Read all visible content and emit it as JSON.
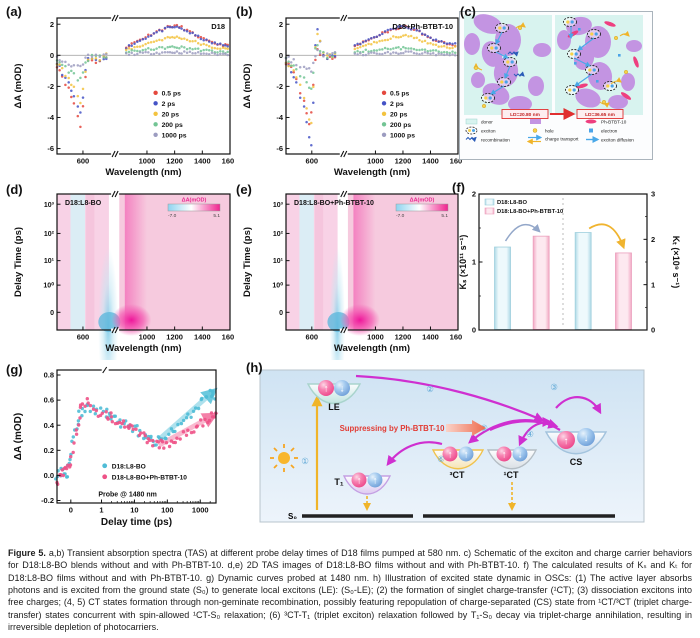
{
  "panels": {
    "a": {
      "tag": "(a)"
    },
    "b": {
      "tag": "(b)"
    },
    "c": {
      "tag": "(c)",
      "ld_before": "LD=20.80 nm",
      "ld_after": "LD=36.65 nm",
      "legend": [
        "donor",
        "exciton",
        "recombination",
        "hole",
        "charge transport",
        "Ph-BTBT-10",
        "electron",
        "exciton diffusion"
      ],
      "colors": {
        "donor": "#d8f3ef",
        "acceptor": "#c79ae4",
        "ph_btbt_10": "#ee3f7f"
      }
    },
    "d": {
      "tag": "(d)"
    },
    "e": {
      "tag": "(e)"
    },
    "f": {
      "tag": "(f)"
    },
    "g": {
      "tag": "(g)"
    },
    "h": {
      "tag": "(h)",
      "suppress": "Suppressing by Ph-BTBT-10",
      "states": {
        "LE": "LE",
        "T1": "T₁",
        "CT3": "³CT",
        "CT1": "¹CT",
        "CS": "CS",
        "S0": "S₀"
      },
      "steps": [
        "①",
        "②",
        "③",
        "④",
        "⑤",
        "⑥"
      ]
    }
  },
  "icons": {
    "spin_up": "↑",
    "spin_down": "↓"
  },
  "caption": {
    "lead": "Figure 5.",
    "body": "a,b) Transient absorption spectra (TAS) at different probe delay times of D18 films pumped at 580 nm. c) Schematic of the exciton and charge carrier behaviors for D18:L8-BO blends without and with Ph-BTBT-10. d,e) 2D TAS images of D18:L8-BO films without and with Ph-BTBT-10. f) The calculated results of Kₛ and Kₜ for D18:L8-BO films without and with Ph-BTBT-10. g) Dynamic curves probed at 1480 nm. h) Illustration of excited state dynamic in OSCs: (1) The active layer absorbs photons and is excited from the ground state (S₀) to generate local excitons (LE): (S₀-LE); (2) the formation of singlet charge-transfer (¹CT); (3) dissociation excitons into free charges; (4, 5) CT states formation through non-geminate recombination, possibly featuring repopulation of charge-separated (CS) state from ¹CT/³CT (triplet charge-transfer) states concurrent with spin-allowed ¹CT-S₀ relaxation; (6) ³CT-T₁ (triplet exciton) relaxation followed by T₁-S₀ decay via triplet-charge annihilation, resulting in irreversible depletion of photocarriers."
  },
  "chart_data": [
    {
      "id": "a",
      "type": "scatter",
      "title": "D18",
      "xlabel": "Wavelength (nm)",
      "ylabel": "ΔA (mOD)",
      "ylim": [
        -6.35,
        2.4
      ],
      "yticks": [
        2,
        0,
        -2,
        -4,
        -6
      ],
      "xticks": [
        600,
        1000,
        1200,
        1400,
        1600
      ],
      "x_break": [
        700,
        800
      ],
      "x": [
        500,
        520,
        545,
        565,
        580,
        590,
        600,
        610,
        620,
        635,
        650,
        665,
        680,
        700,
        850,
        950,
        1050,
        1150,
        1200,
        1250,
        1350,
        1450,
        1550,
        1600
      ],
      "series": [
        {
          "name": "0.5 ps",
          "color": "#e4483e",
          "y": [
            -0.6,
            -1.3,
            -2.2,
            -3.1,
            -3.9,
            -4.6,
            -3.2,
            -1.3,
            -0.4,
            -0.2,
            -0.45,
            -0.4,
            -0.2,
            0.0,
            0.55,
            1.0,
            1.45,
            1.82,
            1.9,
            1.8,
            1.3,
            0.85,
            0.65,
            0.6
          ]
        },
        {
          "name": "2 ps",
          "color": "#4553c6",
          "y": [
            -0.5,
            -1.1,
            -1.9,
            -2.7,
            -3.3,
            -3.8,
            -2.7,
            -1.1,
            -0.35,
            -0.2,
            -0.4,
            -0.35,
            -0.15,
            0.0,
            0.5,
            0.95,
            1.4,
            1.75,
            1.82,
            1.72,
            1.28,
            0.85,
            0.65,
            0.6
          ]
        },
        {
          "name": "20 ps",
          "color": "#f3c33f",
          "y": [
            -0.45,
            -0.95,
            -1.55,
            -2.15,
            -2.6,
            -2.9,
            -2.0,
            -0.9,
            -0.3,
            -0.15,
            -0.3,
            -0.25,
            -0.1,
            0.0,
            0.35,
            0.6,
            0.9,
            1.12,
            1.18,
            1.12,
            0.85,
            0.55,
            0.42,
            0.4
          ]
        },
        {
          "name": "200 ps",
          "color": "#72c494",
          "y": [
            -0.3,
            -0.6,
            -0.95,
            -1.25,
            -1.45,
            -1.55,
            -1.1,
            -0.5,
            -0.2,
            -0.1,
            -0.2,
            -0.15,
            -0.05,
            0.0,
            0.2,
            0.3,
            0.42,
            0.5,
            0.52,
            0.5,
            0.4,
            0.28,
            0.2,
            0.18
          ]
        },
        {
          "name": "1000 ps",
          "color": "#9c9cc0",
          "y": [
            -0.2,
            -0.35,
            -0.5,
            -0.65,
            -0.75,
            -0.85,
            -0.6,
            -0.3,
            -0.1,
            -0.05,
            -0.1,
            -0.08,
            0.0,
            0.02,
            0.08,
            0.12,
            0.16,
            0.19,
            0.2,
            0.19,
            0.15,
            0.1,
            0.08,
            0.08
          ]
        }
      ]
    },
    {
      "id": "b",
      "type": "scatter",
      "title": "D18+Ph-BTBT-10",
      "xlabel": "Wavelength (nm)",
      "ylabel": "ΔA (mOD)",
      "ylim": [
        -6.35,
        2.4
      ],
      "yticks": [
        2,
        0,
        -2,
        -4,
        -6
      ],
      "xticks": [
        600,
        1000,
        1200,
        1400,
        1600
      ],
      "x_break": [
        700,
        800
      ],
      "x": [
        500,
        520,
        540,
        555,
        570,
        580,
        590,
        598,
        606,
        614,
        622,
        632,
        645,
        660,
        680,
        700,
        850,
        950,
        1050,
        1150,
        1220,
        1300,
        1400,
        1500,
        1600
      ],
      "series": [
        {
          "name": "0.5 ps",
          "color": "#e4483e",
          "y": [
            -0.4,
            -0.9,
            -1.6,
            -2.3,
            -3.0,
            -3.6,
            -4.3,
            -3.7,
            -1.8,
            -0.2,
            0.3,
            0.1,
            -0.15,
            -0.25,
            -0.15,
            0.1,
            0.6,
            1.0,
            1.4,
            1.72,
            1.85,
            1.6,
            1.1,
            0.8,
            0.65
          ]
        },
        {
          "name": "2 ps",
          "color": "#4553c6",
          "y": [
            -0.4,
            -1.0,
            -1.8,
            -2.6,
            -3.4,
            -4.3,
            -5.2,
            -5.9,
            -3.0,
            0.8,
            1.6,
            0.9,
            0.1,
            -0.15,
            -0.05,
            0.15,
            0.6,
            1.0,
            1.42,
            1.75,
            1.83,
            1.62,
            1.1,
            0.8,
            0.68
          ]
        },
        {
          "name": "20 ps",
          "color": "#f3c33f",
          "y": [
            -0.35,
            -0.8,
            -1.4,
            -2.0,
            -2.7,
            -3.3,
            -4.0,
            -4.3,
            -2.2,
            0.6,
            1.3,
            0.8,
            0.1,
            -0.1,
            0.0,
            0.15,
            0.45,
            0.7,
            0.95,
            1.2,
            1.28,
            1.1,
            0.75,
            0.55,
            0.5
          ]
        },
        {
          "name": "200 ps",
          "color": "#72c494",
          "y": [
            -0.25,
            -0.5,
            -0.9,
            -1.3,
            -1.6,
            -1.9,
            -2.2,
            -2.3,
            -1.2,
            0.3,
            0.65,
            0.4,
            0.05,
            -0.05,
            0.0,
            0.1,
            0.2,
            0.3,
            0.38,
            0.45,
            0.48,
            0.42,
            0.3,
            0.22,
            0.2
          ]
        },
        {
          "name": "1000 ps",
          "color": "#9c9cc0",
          "y": [
            -0.15,
            -0.3,
            -0.5,
            -0.65,
            -0.8,
            -0.9,
            -1.0,
            -1.05,
            -0.55,
            0.1,
            0.3,
            0.2,
            0.0,
            0.0,
            0.02,
            0.05,
            0.08,
            0.1,
            0.13,
            0.16,
            0.18,
            0.15,
            0.1,
            0.08,
            0.08
          ]
        }
      ]
    },
    {
      "id": "d",
      "type": "heatmap",
      "title": "D18:L8-BO",
      "xlabel": "Wavelength (nm)",
      "ylabel": "Delay Time (ps)",
      "yticks": [
        "10³",
        "10²",
        "10¹",
        "10⁰",
        "0"
      ],
      "xticks": [
        600,
        1000,
        1200,
        1400,
        1600
      ],
      "colorbar": {
        "label": "ΔA(mOD)",
        "min": "-7.0",
        "max": "5.1"
      },
      "bands": {
        "gsb_nm": [
          552,
          608
        ],
        "exciton_nm": [
          655,
          785
        ],
        "pia_nm": [
          840,
          1000
        ],
        "hot_nm": [
          860,
          915
        ]
      }
    },
    {
      "id": "e",
      "type": "heatmap",
      "title": "D18:L8-BO+Ph-BTBT-10",
      "xlabel": "Wavelength (nm)",
      "ylabel": "Delay Time (ps)",
      "yticks": [
        "10³",
        "10²",
        "10¹",
        "10⁰",
        "0"
      ],
      "xticks": [
        600,
        1000,
        1200,
        1400,
        1600
      ],
      "colorbar": {
        "label": "ΔA(mOD)",
        "min": "-7.0",
        "max": "5.1"
      },
      "bands": {
        "gsb_nm": [
          552,
          608
        ],
        "exciton_nm": [
          668,
          778
        ],
        "pia_nm": [
          840,
          1000
        ],
        "hot_nm": [
          855,
          920
        ]
      }
    },
    {
      "id": "f",
      "type": "bar",
      "legend": [
        "D18:L8-BO",
        "D18:L8-BO+Ph-BTBT-10"
      ],
      "ylabel_left": "Kₛ (×10¹¹ s⁻¹)",
      "ylabel_right": "Kₜ (×10⁹ s⁻¹)",
      "ylim_left": [
        0,
        2
      ],
      "ylim_right": [
        0,
        3
      ],
      "yticks_left": [
        0,
        1,
        2
      ],
      "yticks_right": [
        0,
        1,
        2,
        3
      ],
      "groups": [
        {
          "axis": "left",
          "values": [
            1.22,
            1.38
          ]
        },
        {
          "axis": "right",
          "values": [
            2.15,
            1.7
          ]
        }
      ],
      "bar_colors": [
        "#cfe9f2",
        "#f8c9da"
      ]
    },
    {
      "id": "g",
      "type": "scatter",
      "xlabel": "Delay time (ps)",
      "ylabel": "ΔA (mOD)",
      "note": "Probe @ 1480 nm",
      "ylim": [
        -0.22,
        0.84
      ],
      "yticks": [
        0.8,
        0.6,
        0.4,
        0.2,
        0.0,
        -0.2
      ],
      "xticks": [
        0,
        1,
        10,
        100,
        1000
      ],
      "x": [
        -0.45,
        -0.3,
        -0.15,
        0,
        0.15,
        0.3,
        0.5,
        0.8,
        1.3,
        2,
        3.5,
        6,
        10,
        18,
        30,
        50,
        80,
        150,
        300,
        600,
        1200,
        2200,
        3000
      ],
      "series": [
        {
          "name": "D18:L8-BO",
          "color": "#4fbcd6",
          "y": [
            0.0,
            0.02,
            -0.02,
            0.12,
            0.35,
            0.5,
            0.55,
            0.52,
            0.5,
            0.46,
            0.43,
            0.4,
            0.37,
            0.33,
            0.29,
            0.27,
            0.3,
            0.36,
            0.44,
            0.52,
            0.6,
            0.66,
            0.63
          ]
        },
        {
          "name": "D18-L8-BO+Ph-BTBT-10",
          "color": "#ee5287",
          "y": [
            -0.05,
            0.0,
            0.03,
            0.1,
            0.3,
            0.55,
            0.6,
            0.5,
            0.48,
            0.47,
            0.43,
            0.39,
            0.35,
            0.31,
            0.27,
            0.24,
            0.25,
            0.28,
            0.32,
            0.37,
            0.43,
            0.48,
            0.46
          ]
        }
      ],
      "arrows": [
        {
          "x1": 55,
          "y1": 0.285,
          "x2": 2400,
          "y2": 0.665,
          "color": "#6cc9de"
        },
        {
          "x1": 55,
          "y1": 0.24,
          "x2": 2400,
          "y2": 0.475,
          "color": "#f480a8"
        }
      ]
    }
  ]
}
